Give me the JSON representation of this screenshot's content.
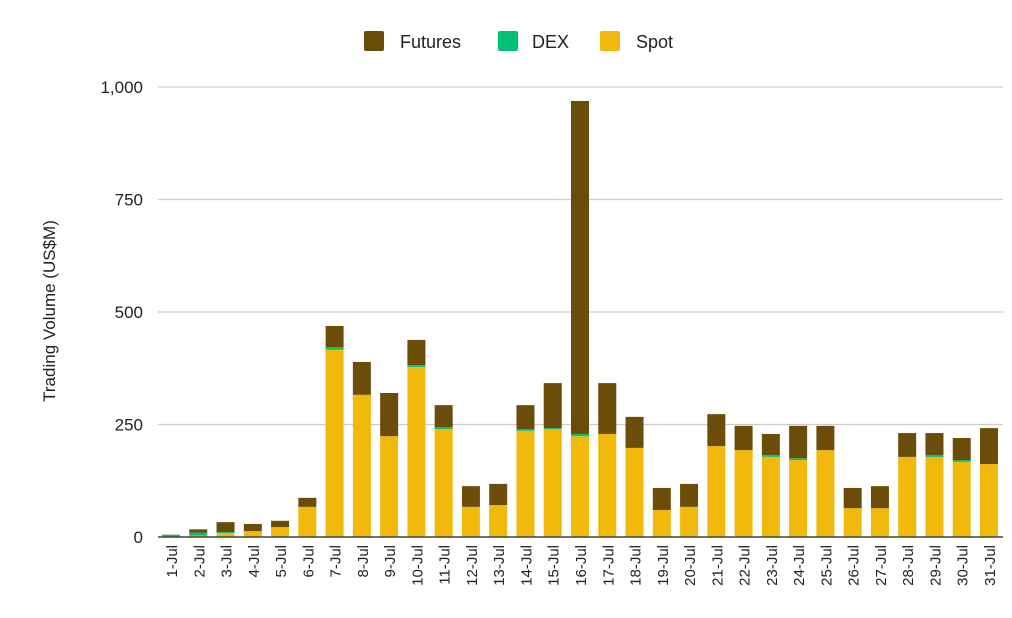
{
  "chart_data": {
    "type": "bar",
    "stacked": true,
    "title": "",
    "xlabel": "",
    "ylabel": "Trading Volume (US$M)",
    "ylim": [
      0,
      1000
    ],
    "yticks": [
      0,
      250,
      500,
      750,
      1000
    ],
    "ytick_labels": [
      "0",
      "250",
      "500",
      "750",
      "1,000"
    ],
    "grid": true,
    "legend_position": "top",
    "categories": [
      "1-Jul",
      "2-Jul",
      "3-Jul",
      "4-Jul",
      "5-Jul",
      "6-Jul",
      "7-Jul",
      "8-Jul",
      "9-Jul",
      "10-Jul",
      "11-Jul",
      "12-Jul",
      "13-Jul",
      "14-Jul",
      "15-Jul",
      "16-Jul",
      "17-Jul",
      "18-Jul",
      "19-Jul",
      "20-Jul",
      "21-Jul",
      "22-Jul",
      "23-Jul",
      "24-Jul",
      "25-Jul",
      "26-Jul",
      "27-Jul",
      "28-Jul",
      "29-Jul",
      "30-Jul",
      "31-Jul"
    ],
    "series": [
      {
        "name": "Spot",
        "color": "#f0b90b",
        "values": [
          1,
          3,
          9,
          13,
          22,
          67,
          416,
          316,
          224,
          378,
          240,
          67,
          71,
          236,
          240,
          224,
          229,
          198,
          60,
          67,
          202,
          193,
          178,
          171,
          193,
          64,
          64,
          178,
          178,
          167,
          162
        ]
      },
      {
        "name": "DEX",
        "color": "#02c076",
        "values": [
          3,
          7,
          2,
          0,
          0,
          0,
          6,
          0,
          0,
          4,
          4,
          0,
          0,
          4,
          2,
          5,
          0,
          0,
          0,
          0,
          0,
          0,
          4,
          4,
          0,
          0,
          0,
          0,
          4,
          4,
          0
        ]
      },
      {
        "name": "Futures",
        "color": "#6b4c09",
        "values": [
          1,
          7,
          22,
          16,
          14,
          20,
          47,
          73,
          96,
          56,
          49,
          46,
          47,
          53,
          100,
          740,
          113,
          69,
          49,
          51,
          71,
          54,
          47,
          72,
          54,
          45,
          49,
          53,
          49,
          49,
          80
        ]
      }
    ],
    "legend_order": [
      "Futures",
      "DEX",
      "Spot"
    ]
  }
}
